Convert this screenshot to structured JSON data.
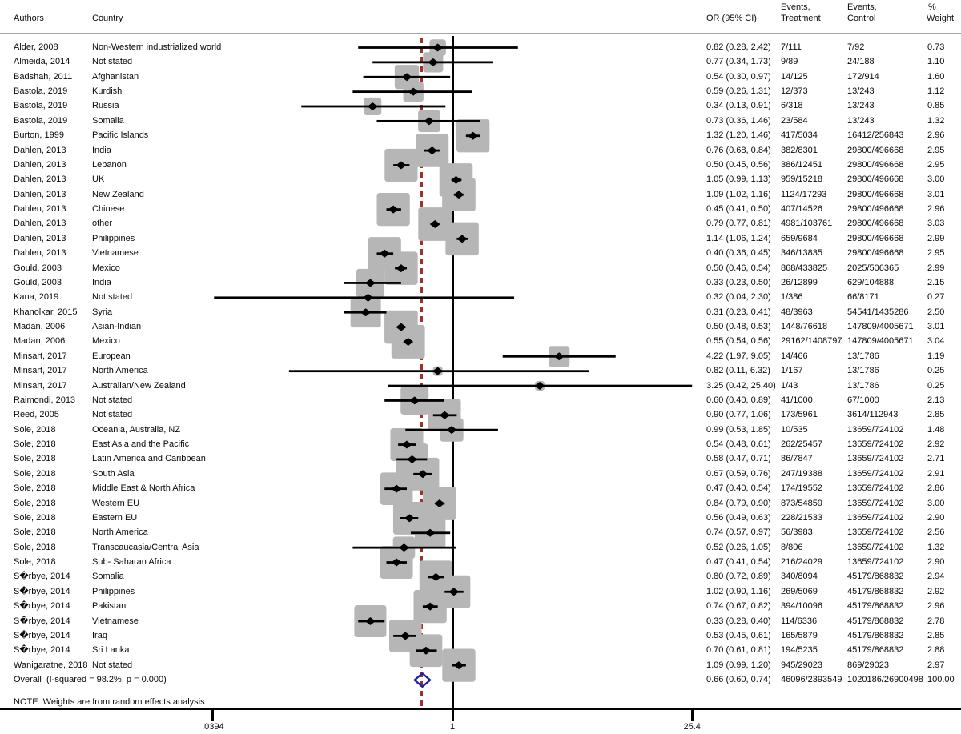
{
  "header": {
    "authors": "Authors",
    "country": "Country",
    "or_ci": "OR (95% CI)",
    "events_treatment_line1": "Events,",
    "events_treatment_line2": "Treatment",
    "events_control_line1": "Events,",
    "events_control_line2": "Control",
    "weight_line1": "%",
    "weight_line2": "Weight"
  },
  "note": "NOTE: Weights are from random effects analysis",
  "colors": {
    "box": "#b6b6b6",
    "marker": "#000000",
    "ci_line": "#000000",
    "null_line": "#000000",
    "overall_ref_line": "#9e3128",
    "overall_diamond": "#2121a3",
    "separator": "#a8a8a8",
    "axis": "#000000",
    "text": "#0a0a0a"
  },
  "chart_data": {
    "type": "scatter",
    "variant": "forest-plot",
    "x_scale": "log",
    "x_axis": {
      "tick_labels": [
        ".0394",
        "1",
        "25.4"
      ],
      "tick_values": [
        0.0394,
        1,
        25.4
      ]
    },
    "null_line_value": 1,
    "overall_ref_value": 0.66,
    "rows": [
      {
        "author": "Alder, 2008",
        "country": "Non-Western industrialized world",
        "or_ci": "0.82 (0.28, 2.42)",
        "or": 0.82,
        "lo": 0.28,
        "hi": 2.42,
        "treatment": "7/111",
        "control": "7/92",
        "weight": 0.73,
        "weight_label": "0.73"
      },
      {
        "author": "Almeida, 2014",
        "country": "Not stated",
        "or_ci": "0.77 (0.34, 1.73)",
        "or": 0.77,
        "lo": 0.34,
        "hi": 1.73,
        "treatment": "9/89",
        "control": "24/188",
        "weight": 1.1,
        "weight_label": "1.10"
      },
      {
        "author": "Badshah, 2011",
        "country": "Afghanistan",
        "or_ci": "0.54 (0.30, 0.97)",
        "or": 0.54,
        "lo": 0.3,
        "hi": 0.97,
        "treatment": "14/125",
        "control": "172/914",
        "weight": 1.6,
        "weight_label": "1.60"
      },
      {
        "author": "Bastola, 2019",
        "country": "Kurdish",
        "or_ci": "0.59 (0.26, 1.31)",
        "or": 0.59,
        "lo": 0.26,
        "hi": 1.31,
        "treatment": "12/373",
        "control": "13/243",
        "weight": 1.12,
        "weight_label": "1.12"
      },
      {
        "author": "Bastola, 2019",
        "country": "Russia",
        "or_ci": "0.34 (0.13, 0.91)",
        "or": 0.34,
        "lo": 0.13,
        "hi": 0.91,
        "treatment": "6/318",
        "control": "13/243",
        "weight": 0.85,
        "weight_label": "0.85"
      },
      {
        "author": "Bastola, 2019",
        "country": "Somalia",
        "or_ci": "0.73 (0.36, 1.46)",
        "or": 0.73,
        "lo": 0.36,
        "hi": 1.46,
        "treatment": "23/584",
        "control": "13/243",
        "weight": 1.32,
        "weight_label": "1.32"
      },
      {
        "author": "Burton, 1999",
        "country": "Pacific Islands",
        "or_ci": "1.32 (1.20, 1.46)",
        "or": 1.32,
        "lo": 1.2,
        "hi": 1.46,
        "treatment": "417/5034",
        "control": "16412/256843",
        "weight": 2.96,
        "weight_label": "2.96"
      },
      {
        "author": "Dahlen, 2013",
        "country": "India",
        "or_ci": "0.76 (0.68, 0.84)",
        "or": 0.76,
        "lo": 0.68,
        "hi": 0.84,
        "treatment": "382/8301",
        "control": "29800/496668",
        "weight": 2.95,
        "weight_label": "2.95"
      },
      {
        "author": "Dahlen, 2013",
        "country": "Lebanon",
        "or_ci": "0.50 (0.45, 0.56)",
        "or": 0.5,
        "lo": 0.45,
        "hi": 0.56,
        "treatment": "386/12451",
        "control": "29800/496668",
        "weight": 2.95,
        "weight_label": "2.95"
      },
      {
        "author": "Dahlen, 2013",
        "country": "UK",
        "or_ci": "1.05 (0.99, 1.13)",
        "or": 1.05,
        "lo": 0.99,
        "hi": 1.13,
        "treatment": "959/15218",
        "control": "29800/496668",
        "weight": 3.0,
        "weight_label": "3.00"
      },
      {
        "author": "Dahlen, 2013",
        "country": "New Zealand",
        "or_ci": "1.09 (1.02, 1.16)",
        "or": 1.09,
        "lo": 1.02,
        "hi": 1.16,
        "treatment": "1124/17293",
        "control": "29800/496668",
        "weight": 3.01,
        "weight_label": "3.01"
      },
      {
        "author": "Dahlen, 2013",
        "country": "Chinese",
        "or_ci": "0.45 (0.41, 0.50)",
        "or": 0.45,
        "lo": 0.41,
        "hi": 0.5,
        "treatment": "407/14526",
        "control": "29800/496668",
        "weight": 2.96,
        "weight_label": "2.96"
      },
      {
        "author": "Dahlen, 2013",
        "country": "other",
        "or_ci": "0.79 (0.77, 0.81)",
        "or": 0.79,
        "lo": 0.77,
        "hi": 0.81,
        "treatment": "4981/103761",
        "control": "29800/496668",
        "weight": 3.03,
        "weight_label": "3.03"
      },
      {
        "author": "Dahlen, 2013",
        "country": "Philippines",
        "or_ci": "1.14 (1.06, 1.24)",
        "or": 1.14,
        "lo": 1.06,
        "hi": 1.24,
        "treatment": "659/9684",
        "control": "29800/496668",
        "weight": 2.99,
        "weight_label": "2.99"
      },
      {
        "author": "Dahlen, 2013",
        "country": "Vietnamese",
        "or_ci": "0.40 (0.36, 0.45)",
        "or": 0.4,
        "lo": 0.36,
        "hi": 0.45,
        "treatment": "346/13835",
        "control": "29800/496668",
        "weight": 2.95,
        "weight_label": "2.95"
      },
      {
        "author": "Gould, 2003",
        "country": "Mexico",
        "or_ci": "0.50 (0.46, 0.54)",
        "or": 0.5,
        "lo": 0.46,
        "hi": 0.54,
        "treatment": "868/433825",
        "control": "2025/506365",
        "weight": 2.99,
        "weight_label": "2.99"
      },
      {
        "author": "Gould, 2003",
        "country": "India",
        "or_ci": "0.33 (0.23, 0.50)",
        "or": 0.33,
        "lo": 0.23,
        "hi": 0.5,
        "treatment": "26/12899",
        "control": "629/104888",
        "weight": 2.15,
        "weight_label": "2.15"
      },
      {
        "author": "Kana, 2019",
        "country": "Not stated",
        "or_ci": "0.32 (0.04, 2.30)",
        "or": 0.32,
        "lo": 0.04,
        "hi": 2.3,
        "treatment": "1/386",
        "control": "66/8171",
        "weight": 0.27,
        "weight_label": "0.27"
      },
      {
        "author": "Khanolkar, 2015",
        "country": "Syria",
        "or_ci": "0.31 (0.23, 0.41)",
        "or": 0.31,
        "lo": 0.23,
        "hi": 0.41,
        "treatment": "48/3963",
        "control": "54541/1435286",
        "weight": 2.5,
        "weight_label": "2.50"
      },
      {
        "author": "Madan, 2006",
        "country": "Asian-Indian",
        "or_ci": "0.50 (0.48, 0.53)",
        "or": 0.5,
        "lo": 0.48,
        "hi": 0.53,
        "treatment": "1448/76618",
        "control": "147809/4005671",
        "weight": 3.01,
        "weight_label": "3.01"
      },
      {
        "author": "Madan, 2006",
        "country": "Mexico",
        "or_ci": "0.55 (0.54, 0.56)",
        "or": 0.55,
        "lo": 0.54,
        "hi": 0.56,
        "treatment": "29162/1408797",
        "control": "147809/4005671",
        "weight": 3.04,
        "weight_label": "3.04"
      },
      {
        "author": "Minsart, 2017",
        "country": "European",
        "or_ci": "4.22 (1.97, 9.05)",
        "or": 4.22,
        "lo": 1.97,
        "hi": 9.05,
        "treatment": "14/466",
        "control": "13/1786",
        "weight": 1.19,
        "weight_label": "1.19"
      },
      {
        "author": "Minsart, 2017",
        "country": "North America",
        "or_ci": "0.82 (0.11, 6.32)",
        "or": 0.82,
        "lo": 0.11,
        "hi": 6.32,
        "treatment": "1/167",
        "control": "13/1786",
        "weight": 0.25,
        "weight_label": "0.25"
      },
      {
        "author": "Minsart, 2017",
        "country": "Australian/New Zealand",
        "or_ci": "3.25 (0.42, 25.40)",
        "or": 3.25,
        "lo": 0.42,
        "hi": 25.4,
        "treatment": "1/43",
        "control": "13/1786",
        "weight": 0.25,
        "weight_label": "0.25"
      },
      {
        "author": "Raimondi, 2013",
        "country": "Not stated",
        "or_ci": "0.60 (0.40, 0.89)",
        "or": 0.6,
        "lo": 0.4,
        "hi": 0.89,
        "treatment": "41/1000",
        "control": "67/1000",
        "weight": 2.13,
        "weight_label": "2.13"
      },
      {
        "author": "Reed, 2005",
        "country": "Not stated",
        "or_ci": "0.90 (0.77, 1.06)",
        "or": 0.9,
        "lo": 0.77,
        "hi": 1.06,
        "treatment": "173/5961",
        "control": "3614/112943",
        "weight": 2.85,
        "weight_label": "2.85"
      },
      {
        "author": "Sole, 2018",
        "country": "Oceania, Australia, NZ",
        "or_ci": "0.99 (0.53, 1.85)",
        "or": 0.99,
        "lo": 0.53,
        "hi": 1.85,
        "treatment": "10/535",
        "control": "13659/724102",
        "weight": 1.48,
        "weight_label": "1.48"
      },
      {
        "author": "Sole, 2018",
        "country": "East Asia and the Pacific",
        "or_ci": "0.54 (0.48, 0.61)",
        "or": 0.54,
        "lo": 0.48,
        "hi": 0.61,
        "treatment": "262/25457",
        "control": "13659/724102",
        "weight": 2.92,
        "weight_label": "2.92"
      },
      {
        "author": "Sole, 2018",
        "country": "Latin America and Caribbean",
        "or_ci": "0.58 (0.47, 0.71)",
        "or": 0.58,
        "lo": 0.47,
        "hi": 0.71,
        "treatment": "86/7847",
        "control": "13659/724102",
        "weight": 2.71,
        "weight_label": "2.71"
      },
      {
        "author": "Sole, 2018",
        "country": "South Asia",
        "or_ci": "0.67 (0.59, 0.76)",
        "or": 0.67,
        "lo": 0.59,
        "hi": 0.76,
        "treatment": "247/19388",
        "control": "13659/724102",
        "weight": 2.91,
        "weight_label": "2.91"
      },
      {
        "author": "Sole, 2018",
        "country": "Middle East & North Africa",
        "or_ci": "0.47 (0.40, 0.54)",
        "or": 0.47,
        "lo": 0.4,
        "hi": 0.54,
        "treatment": "174/19552",
        "control": "13659/724102",
        "weight": 2.86,
        "weight_label": "2.86"
      },
      {
        "author": "Sole, 2018",
        "country": "Western EU",
        "or_ci": "0.84 (0.79, 0.90)",
        "or": 0.84,
        "lo": 0.79,
        "hi": 0.9,
        "treatment": "873/54859",
        "control": "13659/724102",
        "weight": 3.0,
        "weight_label": "3.00"
      },
      {
        "author": "Sole, 2018",
        "country": "Eastern EU",
        "or_ci": "0.56 (0.49, 0.63)",
        "or": 0.56,
        "lo": 0.49,
        "hi": 0.63,
        "treatment": "228/21533",
        "control": "13659/724102",
        "weight": 2.9,
        "weight_label": "2.90"
      },
      {
        "author": "Sole, 2018",
        "country": "North America",
        "or_ci": "0.74 (0.57, 0.97)",
        "or": 0.74,
        "lo": 0.57,
        "hi": 0.97,
        "treatment": "56/3983",
        "control": "13659/724102",
        "weight": 2.56,
        "weight_label": "2.56"
      },
      {
        "author": "Sole, 2018",
        "country": "Transcaucasia/Central Asia",
        "or_ci": "0.52 (0.26, 1.05)",
        "or": 0.52,
        "lo": 0.26,
        "hi": 1.05,
        "treatment": "8/806",
        "control": "13659/724102",
        "weight": 1.32,
        "weight_label": "1.32"
      },
      {
        "author": "Sole, 2018",
        "country": "Sub- Saharan Africa",
        "or_ci": "0.47 (0.41, 0.54)",
        "or": 0.47,
        "lo": 0.41,
        "hi": 0.54,
        "treatment": "216/24029",
        "control": "13659/724102",
        "weight": 2.9,
        "weight_label": "2.90"
      },
      {
        "author": "S�rbye, 2014",
        "country": "Somalia",
        "or_ci": "0.80 (0.72, 0.89)",
        "or": 0.8,
        "lo": 0.72,
        "hi": 0.89,
        "treatment": "340/8094",
        "control": "45179/868832",
        "weight": 2.94,
        "weight_label": "2.94"
      },
      {
        "author": "S�rbye, 2014",
        "country": "Philippines",
        "or_ci": "1.02 (0.90, 1.16)",
        "or": 1.02,
        "lo": 0.9,
        "hi": 1.16,
        "treatment": "269/5069",
        "control": "45179/868832",
        "weight": 2.92,
        "weight_label": "2.92"
      },
      {
        "author": "S�rbye, 2014",
        "country": "Pakistan",
        "or_ci": "0.74 (0.67, 0.82)",
        "or": 0.74,
        "lo": 0.67,
        "hi": 0.82,
        "treatment": "394/10096",
        "control": "45179/868832",
        "weight": 2.96,
        "weight_label": "2.96"
      },
      {
        "author": "S�rbye, 2014",
        "country": "Vietnamese",
        "or_ci": "0.33 (0.28, 0.40)",
        "or": 0.33,
        "lo": 0.28,
        "hi": 0.4,
        "treatment": "114/6336",
        "control": "45179/868832",
        "weight": 2.78,
        "weight_label": "2.78"
      },
      {
        "author": "S�rbye, 2014",
        "country": "Iraq",
        "or_ci": "0.53 (0.45, 0.61)",
        "or": 0.53,
        "lo": 0.45,
        "hi": 0.61,
        "treatment": "165/5879",
        "control": "45179/868832",
        "weight": 2.85,
        "weight_label": "2.85"
      },
      {
        "author": "S�rbye, 2014",
        "country": "Sri Lanka",
        "or_ci": "0.70 (0.61, 0.81)",
        "or": 0.7,
        "lo": 0.61,
        "hi": 0.81,
        "treatment": "194/5235",
        "control": "45179/868832",
        "weight": 2.88,
        "weight_label": "2.88"
      },
      {
        "author": "Wanigaratne, 2018",
        "country": "Not stated",
        "or_ci": "1.09 (0.99, 1.20)",
        "or": 1.09,
        "lo": 0.99,
        "hi": 1.2,
        "treatment": "945/29023",
        "control": "869/29023",
        "weight": 2.97,
        "weight_label": "2.97"
      }
    ],
    "overall": {
      "label": "Overall  (I-squared = 98.2%, p = 0.000)",
      "or_ci": "0.66 (0.60, 0.74)",
      "or": 0.66,
      "lo": 0.6,
      "hi": 0.74,
      "treatment": "46096/2393549",
      "control": "1020186/26900498",
      "weight_label": "100.00"
    }
  }
}
